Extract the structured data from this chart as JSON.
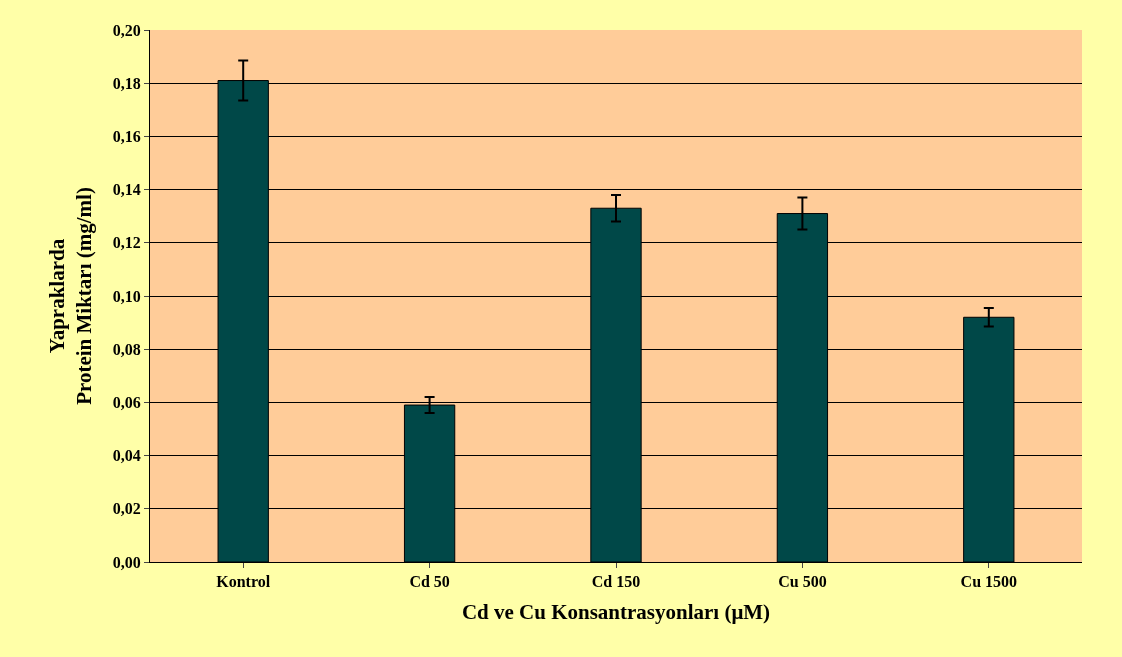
{
  "chart_data": {
    "type": "bar",
    "xlabel": "Cd ve Cu Konsantrasyonları (μM)",
    "ylabel": "Yapraklarda\nProtein Miktarı (mg/ml)",
    "categories": [
      "Kontrol",
      "Cd 50",
      "Cd 150",
      "Cu 500",
      "Cu 1500"
    ],
    "values": [
      0.181,
      0.059,
      0.133,
      0.131,
      0.092
    ],
    "errors": [
      0.0075,
      0.003,
      0.005,
      0.006,
      0.0035
    ],
    "color": "#004848",
    "ylim": [
      0,
      0.2
    ],
    "yticks": [
      {
        "value": 0,
        "label": "0,00"
      },
      {
        "value": 0.02,
        "label": "0,02"
      },
      {
        "value": 0.04,
        "label": "0,04"
      },
      {
        "value": 0.06,
        "label": "0,06"
      },
      {
        "value": 0.08,
        "label": "0,08"
      },
      {
        "value": 0.1,
        "label": "0,10"
      },
      {
        "value": 0.12,
        "label": "0,12"
      },
      {
        "value": 0.14,
        "label": "0,14"
      },
      {
        "value": 0.16,
        "label": "0,16"
      },
      {
        "value": 0.18,
        "label": "0,18"
      },
      {
        "value": 0.2,
        "label": "0,20"
      }
    ],
    "grid": "y",
    "legend": false
  }
}
